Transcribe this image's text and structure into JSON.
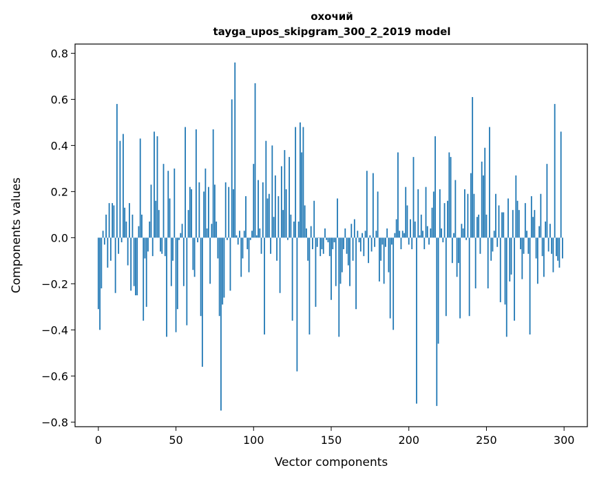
{
  "chart_data": {
    "type": "bar",
    "title": "охочий",
    "subtitle": "tayga_upos_skipgram_300_2_2019 model",
    "xlabel": "Vector components",
    "ylabel": "Components values",
    "xlim": [
      -15,
      315
    ],
    "ylim": [
      -0.82,
      0.84
    ],
    "xticks": [
      0,
      50,
      100,
      150,
      200,
      250,
      300
    ],
    "xtick_labels": [
      "0",
      "50",
      "100",
      "150",
      "200",
      "250",
      "300"
    ],
    "yticks": [
      -0.8,
      -0.6,
      -0.4,
      -0.2,
      0.0,
      0.2,
      0.4,
      0.6,
      0.8
    ],
    "ytick_labels": [
      "−0.8",
      "−0.6",
      "−0.4",
      "−0.2",
      "0.0",
      "0.2",
      "0.4",
      "0.6",
      "0.8"
    ],
    "grid": false,
    "bar_color": "#1f77b4",
    "values": [
      -0.31,
      -0.4,
      -0.22,
      0.03,
      -0.03,
      0.1,
      -0.13,
      0.15,
      -0.1,
      0.15,
      0.14,
      -0.24,
      0.58,
      -0.07,
      0.42,
      -0.02,
      0.45,
      0.13,
      0.07,
      -0.12,
      0.15,
      -0.23,
      0.1,
      -0.21,
      -0.25,
      -0.25,
      0.05,
      0.43,
      0.1,
      -0.36,
      -0.09,
      -0.3,
      -0.06,
      0.07,
      0.23,
      -0.08,
      0.46,
      0.16,
      0.44,
      0.12,
      -0.06,
      -0.07,
      0.32,
      -0.08,
      -0.43,
      0.29,
      0.17,
      -0.21,
      -0.1,
      0.3,
      -0.41,
      -0.31,
      -0.01,
      0.02,
      0.06,
      -0.21,
      0.48,
      -0.38,
      0.12,
      0.22,
      0.21,
      -0.14,
      -0.17,
      0.47,
      -0.02,
      0.24,
      -0.34,
      -0.56,
      0.2,
      0.3,
      0.04,
      0.22,
      -0.2,
      0.06,
      0.47,
      0.23,
      0.07,
      -0.09,
      -0.34,
      -0.75,
      -0.29,
      -0.26,
      0.24,
      -0.01,
      0.22,
      -0.23,
      0.6,
      0.21,
      0.76,
      0.01,
      -0.03,
      0.03,
      -0.17,
      -0.09,
      0.03,
      0.18,
      -0.05,
      -0.15,
      -0.01,
      0.03,
      0.32,
      0.67,
      0.01,
      0.25,
      0.04,
      -0.07,
      0.24,
      -0.42,
      0.42,
      0.17,
      0.19,
      -0.07,
      0.4,
      0.09,
      0.27,
      -0.1,
      0.18,
      -0.24,
      0.31,
      0.12,
      0.38,
      0.21,
      -0.01,
      0.35,
      0.1,
      -0.36,
      0.07,
      0.48,
      -0.58,
      0.07,
      0.5,
      0.37,
      0.48,
      0.14,
      0.04,
      -0.1,
      -0.42,
      0.05,
      -0.05,
      0.16,
      -0.3,
      -0.04,
      0.0,
      -0.08,
      -0.05,
      -0.07,
      0.04,
      -0.01,
      -0.02,
      -0.08,
      -0.27,
      -0.05,
      -0.02,
      -0.21,
      0.17,
      -0.43,
      -0.2,
      -0.15,
      -0.05,
      0.04,
      -0.07,
      -0.12,
      -0.21,
      0.06,
      -0.1,
      0.08,
      -0.31,
      0.03,
      -0.02,
      -0.06,
      0.02,
      -0.08,
      0.03,
      0.29,
      -0.11,
      0.01,
      -0.06,
      0.28,
      -0.04,
      0.03,
      0.2,
      -0.19,
      -0.1,
      -0.03,
      -0.2,
      -0.04,
      0.04,
      -0.15,
      -0.35,
      -0.03,
      -0.4,
      0.02,
      0.08,
      0.37,
      0.03,
      -0.05,
      0.03,
      0.02,
      0.22,
      0.14,
      -0.03,
      0.08,
      -0.05,
      0.35,
      0.07,
      -0.72,
      0.21,
      0.01,
      0.1,
      0.03,
      -0.05,
      0.22,
      0.05,
      -0.03,
      0.04,
      0.13,
      0.2,
      0.44,
      -0.73,
      -0.46,
      0.21,
      0.04,
      -0.02,
      0.15,
      -0.34,
      0.16,
      0.37,
      0.35,
      -0.11,
      0.02,
      0.25,
      -0.17,
      -0.11,
      -0.35,
      0.06,
      0.04,
      0.21,
      -0.01,
      0.19,
      -0.34,
      0.28,
      0.61,
      0.19,
      -0.22,
      0.09,
      0.1,
      -0.07,
      0.33,
      0.27,
      0.39,
      0.1,
      -0.22,
      0.48,
      -0.1,
      -0.06,
      0.03,
      0.19,
      -0.04,
      0.14,
      -0.28,
      0.11,
      0.11,
      -0.29,
      -0.43,
      0.17,
      -0.19,
      -0.16,
      0.12,
      -0.36,
      0.27,
      0.16,
      0.12,
      -0.05,
      -0.18,
      -0.07,
      0.15,
      0.03,
      -0.07,
      -0.42,
      0.18,
      0.09,
      0.12,
      -0.09,
      -0.2,
      0.05,
      0.19,
      -0.08,
      -0.17,
      0.07,
      0.32,
      -0.06,
      0.06,
      -0.07,
      -0.15,
      0.58,
      -0.08,
      -0.1,
      -0.13,
      0.46,
      -0.09
    ]
  }
}
